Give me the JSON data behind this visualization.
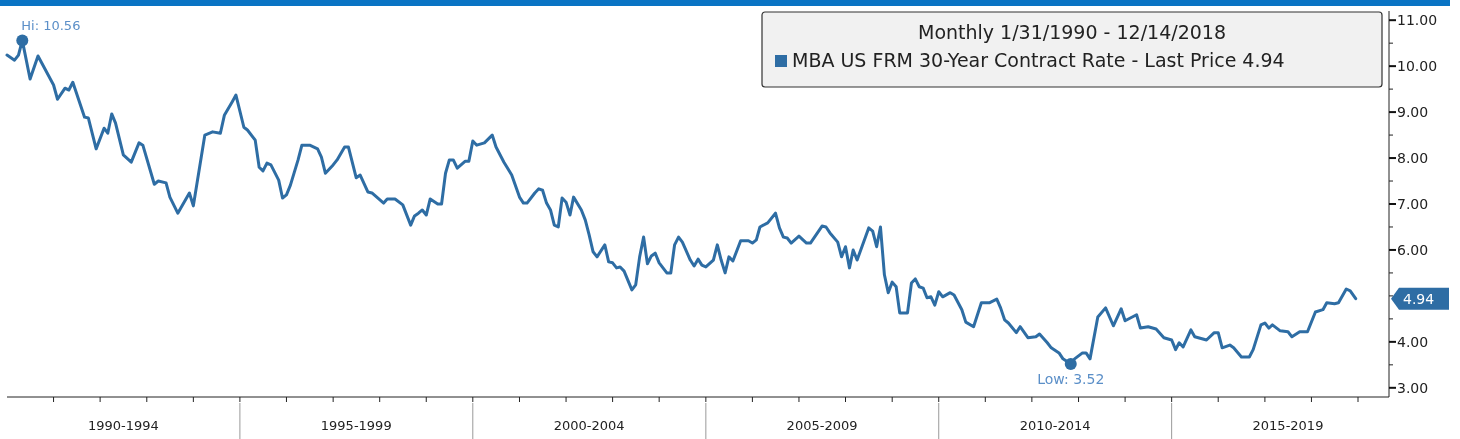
{
  "chart_data": {
    "type": "line",
    "legend_title": "Monthly 1/31/1990 - 12/14/2018",
    "legend": "top right",
    "grid": false,
    "line_style": "solid",
    "xlim": [
      "1990-01-01",
      "2019-09-01"
    ],
    "ylim": [
      2.8,
      11.2
    ],
    "xticks": [
      {
        "value": "1991",
        "label": null
      },
      {
        "value": "1992",
        "label": null
      },
      {
        "value": "1992-07-01",
        "label": "1990-1994"
      },
      {
        "value": "1993",
        "label": null
      },
      {
        "value": "1994",
        "label": null
      },
      {
        "value": "1995",
        "label": null
      },
      {
        "value": "1996",
        "label": null
      },
      {
        "value": "1997",
        "label": null
      },
      {
        "value": "1997-07-01",
        "label": "1995-1999"
      },
      {
        "value": "1998",
        "label": null
      },
      {
        "value": "1999",
        "label": null
      },
      {
        "value": "2000",
        "label": null
      },
      {
        "value": "2001",
        "label": null
      },
      {
        "value": "2002",
        "label": null
      },
      {
        "value": "2002-07-01",
        "label": "2000-2004"
      },
      {
        "value": "2003",
        "label": null
      },
      {
        "value": "2004",
        "label": null
      },
      {
        "value": "2005",
        "label": null
      },
      {
        "value": "2006",
        "label": null
      },
      {
        "value": "2007",
        "label": null
      },
      {
        "value": "2007-07-01",
        "label": "2005-2009"
      },
      {
        "value": "2008",
        "label": null
      },
      {
        "value": "2009",
        "label": null
      },
      {
        "value": "2010",
        "label": null
      },
      {
        "value": "2011",
        "label": null
      },
      {
        "value": "2012",
        "label": null
      },
      {
        "value": "2012-07-01",
        "label": "2010-2014"
      },
      {
        "value": "2013",
        "label": null
      },
      {
        "value": "2014",
        "label": null
      },
      {
        "value": "2015",
        "label": null
      },
      {
        "value": "2016",
        "label": null
      },
      {
        "value": "2017",
        "label": null
      },
      {
        "value": "2017-07-01",
        "label": "2015-2019"
      },
      {
        "value": "2018",
        "label": null
      },
      {
        "value": "2019",
        "label": null
      }
    ],
    "yticks": [
      {
        "value": 3,
        "label": "3.00"
      },
      {
        "value": 3.5,
        "label": null
      },
      {
        "value": 4,
        "label": "4.00"
      },
      {
        "value": 4.5,
        "label": null
      },
      {
        "value": 5,
        "label": null
      },
      {
        "value": 5.5,
        "label": null
      },
      {
        "value": 6,
        "label": "6.00"
      },
      {
        "value": 6.5,
        "label": null
      },
      {
        "value": 7,
        "label": "7.00"
      },
      {
        "value": 7.5,
        "label": null
      },
      {
        "value": 8,
        "label": "8.00"
      },
      {
        "value": 8.5,
        "label": null
      },
      {
        "value": 9,
        "label": "9.00"
      },
      {
        "value": 9.5,
        "label": null
      },
      {
        "value": 10,
        "label": "10.00"
      },
      {
        "value": 10.5,
        "label": null
      },
      {
        "value": 11,
        "label": "11.00"
      }
    ],
    "annotations": [
      {
        "text": "Hi: 10.56",
        "x": "1990-05",
        "y": 10.56
      },
      {
        "text": "Low: 3.52",
        "x": "2012-11",
        "y": 3.52
      },
      "4.94"
    ],
    "series": [
      {
        "name": "MBA US FRM 30-Year Contract Rate - Last Price 4.94",
        "color": "#2e6da4",
        "x": [
          "1990-01",
          "1990-03",
          "1990-04",
          "1990-05",
          "1990-07",
          "1990-09",
          "1991-01",
          "1991-02",
          "1991-04",
          "1991-05",
          "1991-06",
          "1991-09",
          "1991-10",
          "1991-12",
          "1992-02",
          "1992-03",
          "1992-04",
          "1992-05",
          "1992-07",
          "1992-09",
          "1992-11",
          "1992-12",
          "1993-03",
          "1993-04",
          "1993-06",
          "1993-07",
          "1993-09",
          "1993-12",
          "1994-01",
          "1994-04",
          "1994-06",
          "1994-08",
          "1994-09",
          "1994-11",
          "1994-12",
          "1995-02",
          "1995-03",
          "1995-05",
          "1995-06",
          "1995-07",
          "1995-08",
          "1995-09",
          "1995-11",
          "1995-12",
          "1996-01",
          "1996-02",
          "1996-04",
          "1996-05",
          "1996-07",
          "1996-09",
          "1996-10",
          "1996-11",
          "1997-01",
          "1997-02",
          "1997-04",
          "1997-05",
          "1997-07",
          "1997-08",
          "1997-10",
          "1997-11",
          "1998-02",
          "1998-03",
          "1998-05",
          "1998-07",
          "1998-09",
          "1998-10",
          "1998-11",
          "1998-12",
          "1999-01",
          "1999-02",
          "1999-04",
          "1999-05",
          "1999-06",
          "1999-07",
          "1999-08",
          "1999-09",
          "1999-11",
          "1999-12",
          "2000-01",
          "2000-02",
          "2000-04",
          "2000-06",
          "2000-07",
          "2000-09",
          "2000-11",
          "2001-01",
          "2001-02",
          "2001-03",
          "2001-05",
          "2001-06",
          "2001-07",
          "2001-08",
          "2001-09",
          "2001-10",
          "2001-11",
          "2001-12",
          "2002-01",
          "2002-02",
          "2002-03",
          "2002-05",
          "2002-06",
          "2002-07",
          "2002-08",
          "2002-09",
          "2002-11",
          "2002-12",
          "2003-01",
          "2003-02",
          "2003-03",
          "2003-04",
          "2003-06",
          "2003-07",
          "2003-08",
          "2003-09",
          "2003-10",
          "2003-11",
          "2003-12",
          "2004-01",
          "2004-03",
          "2004-04",
          "2004-05",
          "2004-06",
          "2004-07",
          "2004-09",
          "2004-10",
          "2004-11",
          "2004-12",
          "2005-01",
          "2005-03",
          "2005-04",
          "2005-05",
          "2005-06",
          "2005-07",
          "2005-08",
          "2005-10",
          "2005-12",
          "2006-01",
          "2006-02",
          "2006-03",
          "2006-05",
          "2006-07",
          "2006-08",
          "2006-09",
          "2006-10",
          "2006-11",
          "2007-01",
          "2007-03",
          "2007-04",
          "2007-07",
          "2007-08",
          "2007-09",
          "2007-11",
          "2007-12",
          "2008-01",
          "2008-02",
          "2008-03",
          "2008-04",
          "2008-07",
          "2008-08",
          "2008-09",
          "2008-10",
          "2008-11",
          "2008-12",
          "2009-01",
          "2009-02",
          "2009-03",
          "2009-05",
          "2009-06",
          "2009-07",
          "2009-08",
          "2009-09",
          "2009-10",
          "2009-11",
          "2009-12",
          "2010-01",
          "2010-02",
          "2010-04",
          "2010-05",
          "2010-07",
          "2010-08",
          "2010-10",
          "2010-12",
          "2011-02",
          "2011-04",
          "2011-05",
          "2011-06",
          "2011-07",
          "2011-09",
          "2011-10",
          "2011-12",
          "2012-02",
          "2012-03",
          "2012-05",
          "2012-06",
          "2012-08",
          "2012-09",
          "2012-11",
          "2012-12",
          "2013-02",
          "2013-03",
          "2013-04",
          "2013-06",
          "2013-08",
          "2013-10",
          "2013-12",
          "2014-01",
          "2014-04",
          "2014-05",
          "2014-07",
          "2014-09",
          "2014-11",
          "2015-01",
          "2015-02",
          "2015-03",
          "2015-04",
          "2015-06",
          "2015-07",
          "2015-10",
          "2015-12",
          "2016-01",
          "2016-02",
          "2016-04",
          "2016-05",
          "2016-07",
          "2016-09",
          "2016-10",
          "2016-12",
          "2017-01",
          "2017-02",
          "2017-03",
          "2017-05",
          "2017-07",
          "2017-08",
          "2017-10",
          "2017-12",
          "2018-02",
          "2018-04",
          "2018-05",
          "2018-07",
          "2018-08",
          "2018-10",
          "2018-11",
          "2018-12-14"
        ],
        "values": [
          10.24,
          10.13,
          10.24,
          10.56,
          9.72,
          10.22,
          9.59,
          9.28,
          9.52,
          9.48,
          9.65,
          8.89,
          8.87,
          8.2,
          8.65,
          8.54,
          8.96,
          8.76,
          8.07,
          7.91,
          8.33,
          8.28,
          7.43,
          7.5,
          7.46,
          7.15,
          6.8,
          7.24,
          6.96,
          8.5,
          8.57,
          8.54,
          8.93,
          9.22,
          9.37,
          8.67,
          8.61,
          8.39,
          7.8,
          7.72,
          7.89,
          7.85,
          7.52,
          7.13,
          7.2,
          7.41,
          7.96,
          8.28,
          8.28,
          8.2,
          8.02,
          7.67,
          7.85,
          7.96,
          8.24,
          8.24,
          7.57,
          7.63,
          7.26,
          7.24,
          7.02,
          7.11,
          7.11,
          6.98,
          6.54,
          6.74,
          6.8,
          6.87,
          6.76,
          7.11,
          7.0,
          7.0,
          7.67,
          7.96,
          7.96,
          7.78,
          7.93,
          7.93,
          8.37,
          8.28,
          8.33,
          8.5,
          8.24,
          7.91,
          7.63,
          7.15,
          7.02,
          7.02,
          7.24,
          7.33,
          7.3,
          7.02,
          6.87,
          6.54,
          6.5,
          7.13,
          7.04,
          6.76,
          7.15,
          6.87,
          6.65,
          6.33,
          5.96,
          5.85,
          6.11,
          5.74,
          5.72,
          5.61,
          5.63,
          5.54,
          5.13,
          5.24,
          5.85,
          6.28,
          5.7,
          5.87,
          5.93,
          5.72,
          5.5,
          5.5,
          6.11,
          6.28,
          6.17,
          5.78,
          5.65,
          5.8,
          5.67,
          5.63,
          5.78,
          6.11,
          5.78,
          5.5,
          5.85,
          5.76,
          6.2,
          6.2,
          6.15,
          6.22,
          6.5,
          6.59,
          6.8,
          6.48,
          6.28,
          6.26,
          6.15,
          6.3,
          6.15,
          6.15,
          6.52,
          6.5,
          6.37,
          6.17,
          5.85,
          6.07,
          5.61,
          6.0,
          5.78,
          6.48,
          6.41,
          6.07,
          6.5,
          5.46,
          5.07,
          5.3,
          5.2,
          4.63,
          4.63,
          5.28,
          5.37,
          5.2,
          5.17,
          4.96,
          4.98,
          4.8,
          5.09,
          4.98,
          5.07,
          5.02,
          4.7,
          4.43,
          4.33,
          4.85,
          4.85,
          4.93,
          4.74,
          4.48,
          4.41,
          4.2,
          4.33,
          4.09,
          4.11,
          4.17,
          3.98,
          3.87,
          3.76,
          3.63,
          3.52,
          3.63,
          3.76,
          3.76,
          3.63,
          4.54,
          4.74,
          4.35,
          4.72,
          4.46,
          4.59,
          4.3,
          4.33,
          4.28,
          4.09,
          4.04,
          3.83,
          3.98,
          3.89,
          4.26,
          4.11,
          4.04,
          4.2,
          4.2,
          3.87,
          3.93,
          3.87,
          3.67,
          3.67,
          3.83,
          4.37,
          4.41,
          4.3,
          4.37,
          4.24,
          4.22,
          4.11,
          4.22,
          4.22,
          4.65,
          4.7,
          4.85,
          4.83,
          4.85,
          5.15,
          5.11,
          4.94
        ]
      }
    ]
  }
}
